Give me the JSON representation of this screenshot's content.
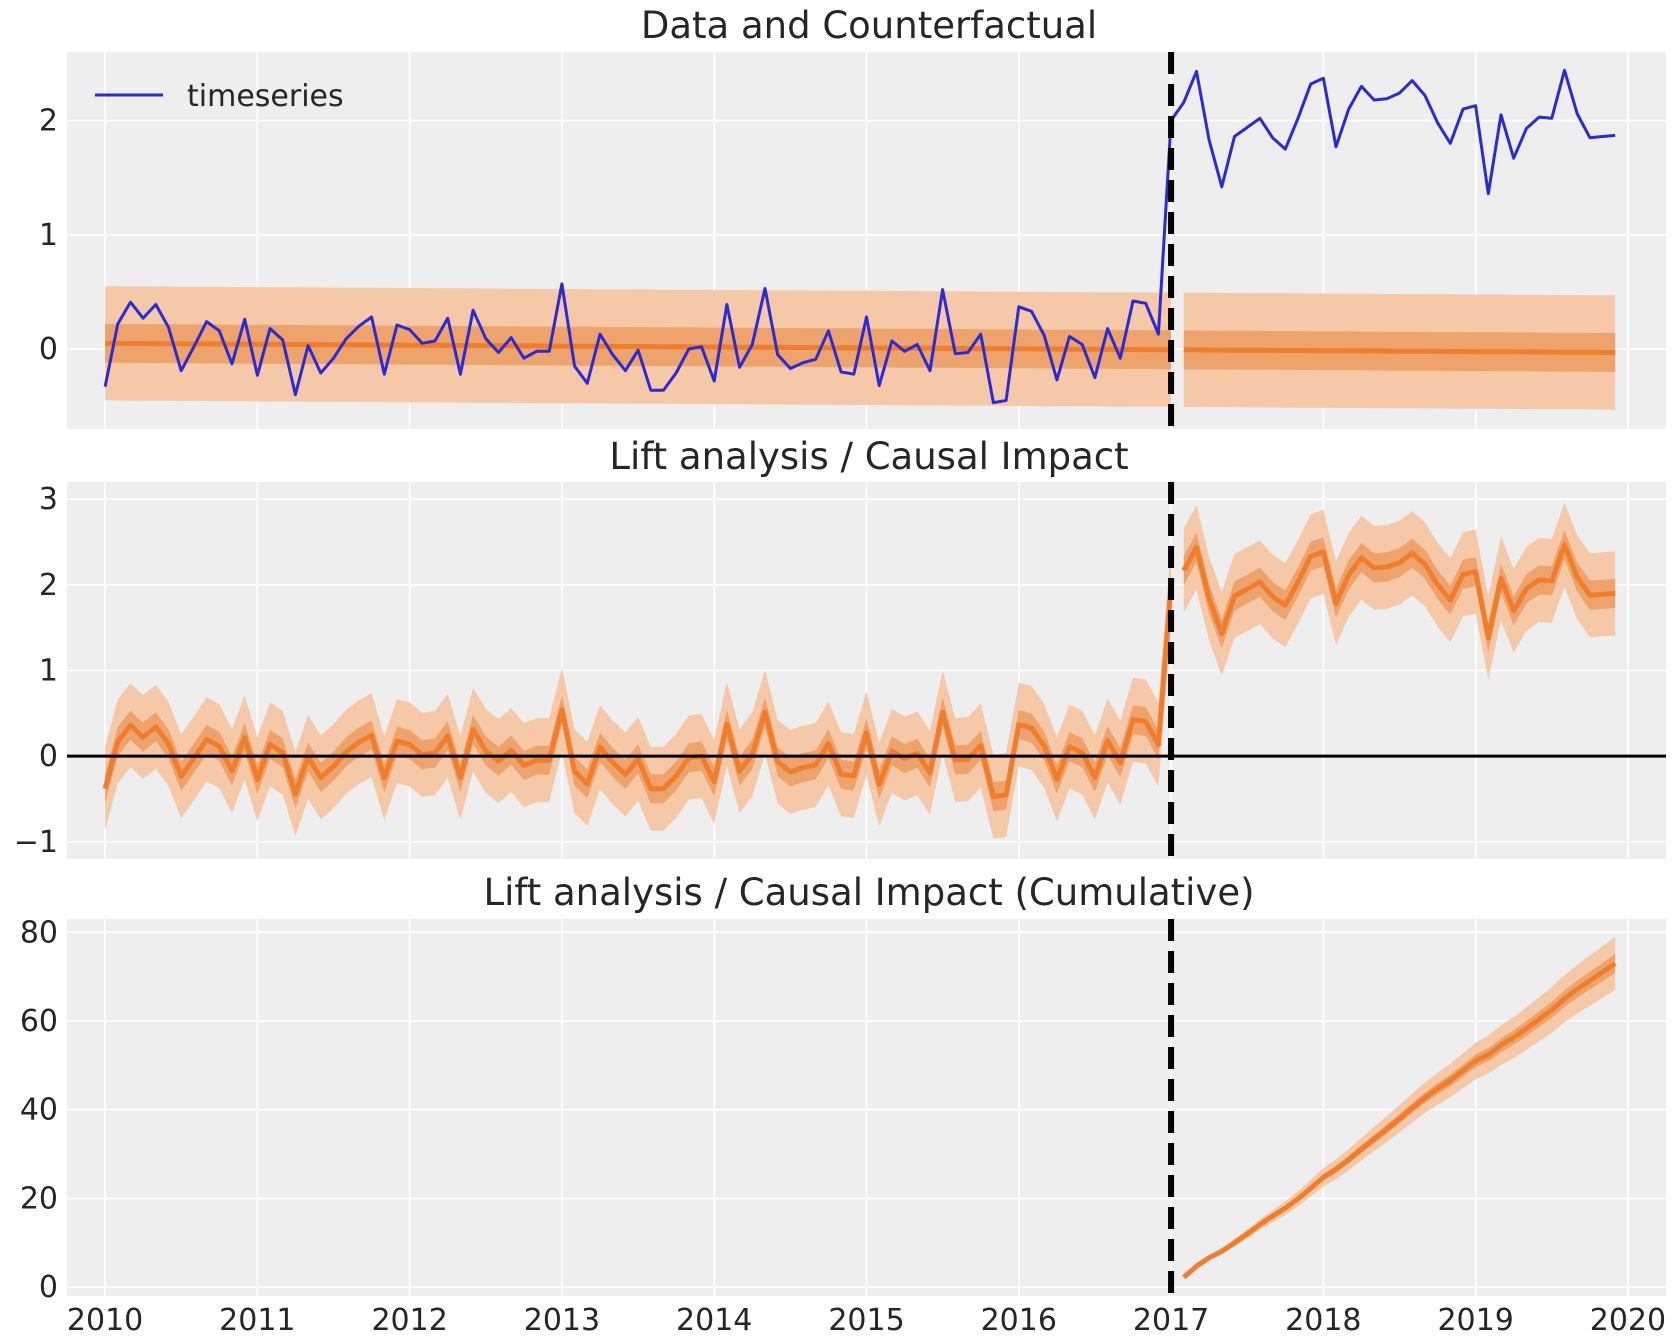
{
  "colors": {
    "observed": "#2b2bd6",
    "model": "#f07d2c",
    "band_outer": "#f5c9a8",
    "band_inner": "#eea36c",
    "intervention": "#000000",
    "zero_line": "#000000",
    "panel_bg": "#eeeeee",
    "grid": "#ffffff"
  },
  "x_axis": {
    "ticks": [
      "2010",
      "2011",
      "2012",
      "2013",
      "2014",
      "2015",
      "2016",
      "2017",
      "2018",
      "2019",
      "2020"
    ],
    "range": [
      "2009-10",
      "2020-04"
    ]
  },
  "intervention_date": "2017-01",
  "chart_data": [
    {
      "type": "line",
      "title": "Data and Counterfactual",
      "legend": {
        "entries": [
          "timeseries"
        ],
        "placement": "top-left"
      },
      "ylim": [
        -0.7,
        2.6
      ],
      "yticks": [
        "0",
        "1",
        "2"
      ],
      "grid": true,
      "x_start": "2010-01",
      "series": [
        {
          "name": "timeseries",
          "values": [
            -0.33,
            0.22,
            0.41,
            0.27,
            0.39,
            0.19,
            -0.19,
            0.02,
            0.24,
            0.16,
            -0.13,
            0.26,
            -0.23,
            0.18,
            0.08,
            -0.4,
            0.03,
            -0.21,
            -0.08,
            0.09,
            0.2,
            0.28,
            -0.22,
            0.21,
            0.17,
            0.05,
            0.07,
            0.27,
            -0.22,
            0.34,
            0.09,
            -0.03,
            0.1,
            -0.08,
            -0.02,
            -0.02,
            0.57,
            -0.15,
            -0.3,
            0.13,
            -0.05,
            -0.19,
            -0.01,
            -0.36,
            -0.36,
            -0.21,
            0.0,
            0.02,
            -0.28,
            0.39,
            -0.16,
            0.04,
            0.53,
            -0.05,
            -0.17,
            -0.12,
            -0.09,
            0.16,
            -0.2,
            -0.22,
            0.28,
            -0.32,
            0.07,
            -0.02,
            0.04,
            -0.19,
            0.52,
            -0.04,
            -0.03,
            0.13,
            -0.47,
            -0.45,
            0.37,
            0.33,
            0.12,
            -0.27,
            0.11,
            0.04,
            -0.25,
            0.18,
            -0.08,
            0.42,
            0.4,
            0.13,
            2.0,
            2.16,
            2.43,
            1.83,
            1.42,
            1.86,
            1.94,
            2.02,
            1.85,
            1.75,
            2.02,
            2.32,
            2.37,
            1.77,
            2.1,
            2.3,
            2.18,
            2.19,
            2.24,
            2.35,
            2.22,
            1.98,
            1.8,
            2.1,
            2.13,
            1.36,
            2.05,
            1.67,
            1.93,
            2.03,
            2.02,
            2.44,
            2.06,
            1.85,
            1.86,
            1.87
          ]
        },
        {
          "name": "",
          "values": "counterfactual mean ≈ 0.05 falling to -0.03",
          "mean_start": 0.05,
          "mean_end": -0.03,
          "inner_halfwidth": 0.17,
          "outer_halfwidth": 0.5
        }
      ]
    },
    {
      "type": "line",
      "title": "Lift analysis / Causal Impact",
      "ylim": [
        -1.2,
        3.2
      ],
      "yticks": [
        "−1",
        "0",
        "1",
        "2",
        "3"
      ],
      "grid": true,
      "reference_line": 0,
      "inner_halfwidth": 0.17,
      "outer_halfwidth": 0.49,
      "values": "lift = timeseries − counterfactual mean"
    },
    {
      "type": "line",
      "title": "Lift analysis / Causal Impact (Cumulative)",
      "ylim": [
        -2,
        83
      ],
      "yticks": [
        "0",
        "20",
        "40",
        "60",
        "80"
      ],
      "grid": true,
      "start": "2017-01",
      "end_value": 73,
      "outer_halfwidth_end": 6
    }
  ]
}
